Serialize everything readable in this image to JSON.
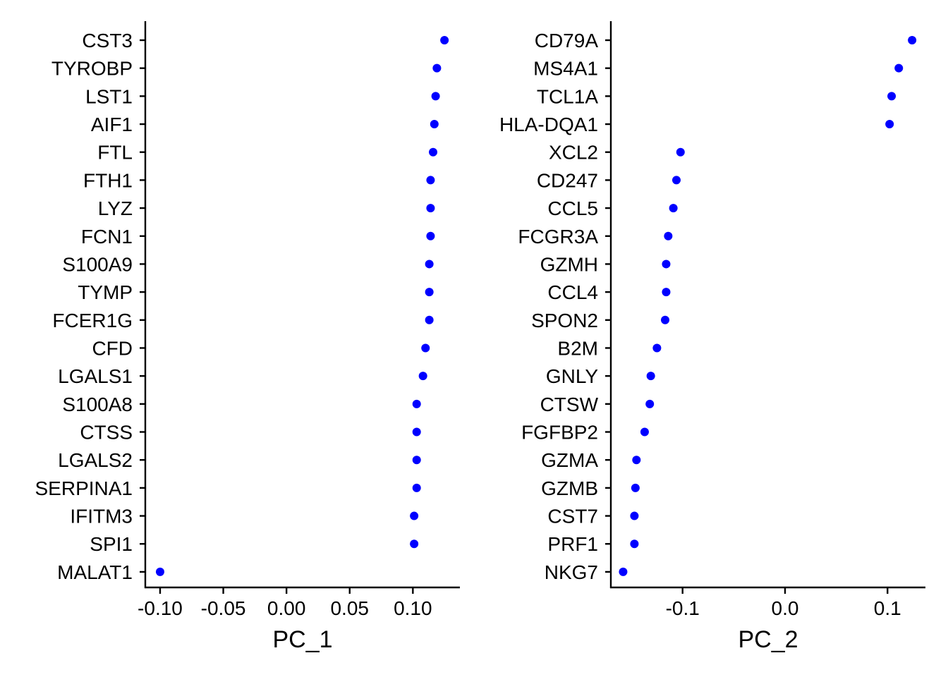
{
  "chart_data": [
    {
      "type": "scatter",
      "xlabel": "PC_1",
      "ylabel": "",
      "xlim": [
        -0.1117,
        0.1372
      ],
      "xticks": [
        -0.1,
        -0.05,
        0.0,
        0.05,
        0.1
      ],
      "xtick_labels": [
        "-0.10",
        "-0.05",
        "0.00",
        "0.05",
        "0.10"
      ],
      "grid": false,
      "point_color": "#0000ff",
      "categories": [
        "CST3",
        "TYROBP",
        "LST1",
        "AIF1",
        "FTL",
        "FTH1",
        "LYZ",
        "FCN1",
        "S100A9",
        "TYMP",
        "FCER1G",
        "CFD",
        "LGALS1",
        "S100A8",
        "CTSS",
        "LGALS2",
        "SERPINA1",
        "IFITM3",
        "SPI1",
        "MALAT1"
      ],
      "values": [
        0.125,
        0.119,
        0.118,
        0.117,
        0.116,
        0.114,
        0.114,
        0.114,
        0.113,
        0.113,
        0.113,
        0.11,
        0.108,
        0.103,
        0.103,
        0.103,
        0.103,
        0.101,
        0.101,
        -0.1
      ]
    },
    {
      "type": "scatter",
      "xlabel": "PC_2",
      "ylabel": "",
      "xlim": [
        -0.17,
        0.137
      ],
      "xticks": [
        -0.1,
        0.0,
        0.1
      ],
      "xtick_labels": [
        "-0.1",
        "0.0",
        "0.1"
      ],
      "grid": false,
      "point_color": "#0000ff",
      "categories": [
        "CD79A",
        "MS4A1",
        "TCL1A",
        "HLA-DQA1",
        "XCL2",
        "CD247",
        "CCL5",
        "FCGR3A",
        "GZMH",
        "CCL4",
        "SPON2",
        "B2M",
        "GNLY",
        "CTSW",
        "FGFBP2",
        "GZMA",
        "GZMB",
        "CST7",
        "PRF1",
        "NKG7"
      ],
      "values": [
        0.124,
        0.111,
        0.104,
        0.102,
        -0.102,
        -0.106,
        -0.109,
        -0.114,
        -0.116,
        -0.116,
        -0.117,
        -0.125,
        -0.131,
        -0.132,
        -0.137,
        -0.145,
        -0.146,
        -0.147,
        -0.147,
        -0.158
      ]
    }
  ]
}
